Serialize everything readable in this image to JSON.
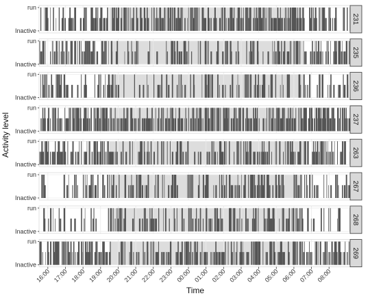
{
  "chart_data": {
    "type": "bar",
    "facet_variable": "subject",
    "xlabel": "Time",
    "ylabel": "Activity level",
    "y_levels": [
      "Inactive",
      "run"
    ],
    "x_ticks": [
      "16:00",
      "17:00",
      "18:00",
      "19:00",
      "20:00",
      "21:00",
      "22:00",
      "23:00",
      "00:00",
      "01:00",
      "02:00",
      "03:00",
      "04:00",
      "05:00",
      "06:00",
      "07:00",
      "08:00"
    ],
    "x_range_hours": [
      15.5,
      33.2
    ],
    "dark_period_hours": [
      19.5,
      30.5
    ],
    "grid": true,
    "colors": {
      "bar": "#555555",
      "dark_shade": "#dddddd",
      "panel_bg": "#ffffff",
      "grid": "#ebebeb",
      "strip_bg": "#d9d9d9",
      "strip_border": "#333333"
    },
    "panels": [
      {
        "label": "231",
        "seed": 231,
        "density_light": 0.55,
        "density_dark": 0.7
      },
      {
        "label": "235",
        "seed": 235,
        "density_light": 0.6,
        "density_dark": 0.35
      },
      {
        "label": "236",
        "seed": 236,
        "density_light": 0.45,
        "density_dark": 0.4
      },
      {
        "label": "237",
        "seed": 237,
        "density_light": 0.8,
        "density_dark": 0.75
      },
      {
        "label": "263",
        "seed": 263,
        "density_light": 0.7,
        "density_dark": 0.45
      },
      {
        "label": "267",
        "seed": 267,
        "density_light": 0.35,
        "density_dark": 0.45
      },
      {
        "label": "268",
        "seed": 268,
        "density_light": 0.25,
        "density_dark": 0.5
      },
      {
        "label": "269",
        "seed": 269,
        "density_light": 0.6,
        "density_dark": 0.6
      }
    ]
  }
}
